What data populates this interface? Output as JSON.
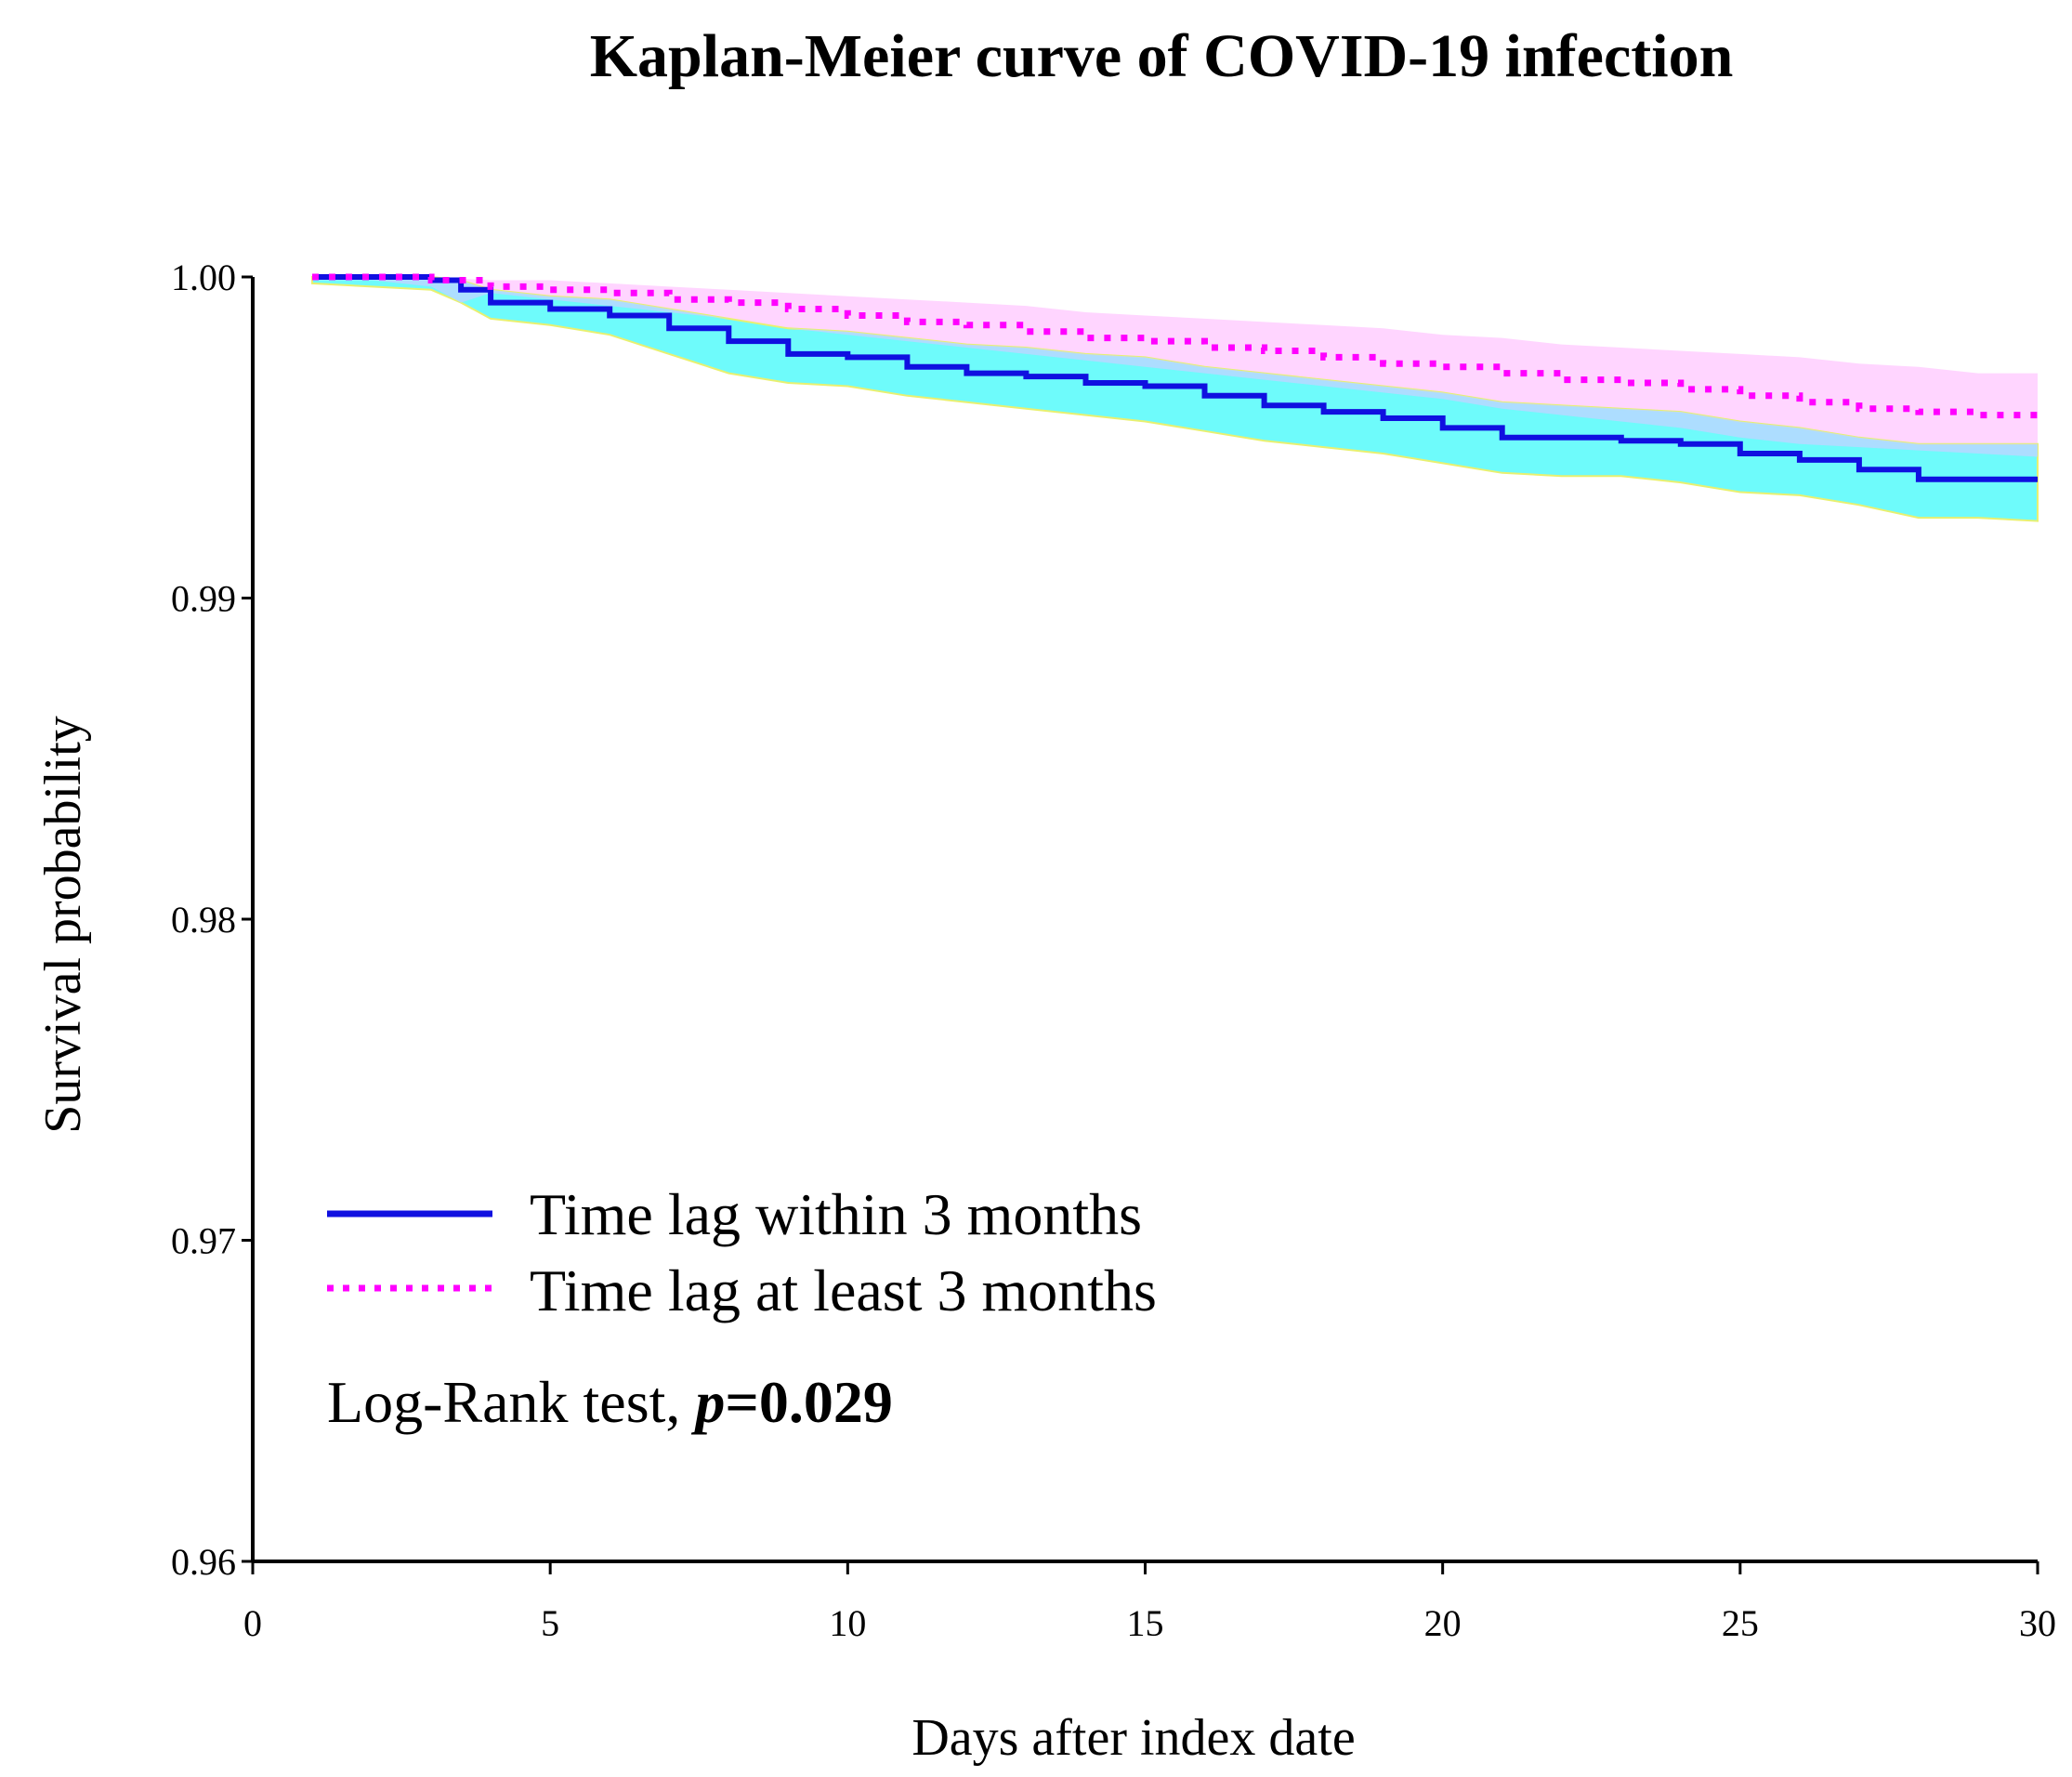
{
  "chart_data": {
    "type": "line",
    "title": "Kaplan-Meier curve of COVID-19 infection",
    "xlabel": "Days after index date",
    "ylabel": "Survival probability",
    "xlim": [
      0,
      30
    ],
    "ylim": [
      0.96,
      1.0
    ],
    "xticks": [
      0,
      5,
      10,
      15,
      20,
      25,
      30
    ],
    "xtick_labels": [
      "0",
      "5",
      "10",
      "15",
      "20",
      "25",
      "30"
    ],
    "yticks": [
      0.96,
      0.97,
      0.98,
      0.99,
      1.0
    ],
    "ytick_labels": [
      "0.96",
      "0.97",
      "0.98",
      "0.99",
      "1.00"
    ],
    "series": [
      {
        "name": "Time lag within 3 months",
        "color": "#1010e0",
        "line_style": "solid",
        "ci_color": "#55fafa",
        "x": [
          1,
          2,
          3,
          3.5,
          4,
          5,
          6,
          7,
          8,
          9,
          10,
          11,
          12,
          13,
          14,
          15,
          16,
          17,
          18,
          19,
          20,
          21,
          22,
          23,
          24,
          25,
          26,
          27,
          28,
          29,
          30
        ],
        "y": [
          1.0,
          1.0,
          0.9999,
          0.9996,
          0.9992,
          0.999,
          0.9988,
          0.9984,
          0.998,
          0.9976,
          0.9975,
          0.9972,
          0.997,
          0.9969,
          0.9967,
          0.9966,
          0.9963,
          0.996,
          0.9958,
          0.9956,
          0.9953,
          0.995,
          0.995,
          0.9949,
          0.9948,
          0.9945,
          0.9943,
          0.994,
          0.9937,
          0.9937,
          0.9937
        ],
        "ci_lower": [
          0.9998,
          0.9997,
          0.9996,
          0.9992,
          0.9987,
          0.9985,
          0.9982,
          0.9976,
          0.997,
          0.9967,
          0.9966,
          0.9963,
          0.9961,
          0.9959,
          0.9957,
          0.9955,
          0.9952,
          0.9949,
          0.9947,
          0.9945,
          0.9942,
          0.9939,
          0.9938,
          0.9938,
          0.9936,
          0.9933,
          0.9932,
          0.9929,
          0.9925,
          0.9925,
          0.9924
        ],
        "ci_upper": [
          1.0,
          1.0,
          1.0,
          0.9999,
          0.9996,
          0.9994,
          0.9993,
          0.999,
          0.9987,
          0.9984,
          0.9983,
          0.9981,
          0.9979,
          0.9978,
          0.9976,
          0.9975,
          0.9972,
          0.997,
          0.9968,
          0.9966,
          0.9964,
          0.9961,
          0.996,
          0.9959,
          0.9958,
          0.9955,
          0.9953,
          0.995,
          0.9948,
          0.9948,
          0.9948
        ]
      },
      {
        "name": "Time lag at least 3 months",
        "color": "#ff00ff",
        "line_style": "dotted",
        "ci_color": "#ffd0ff",
        "x": [
          1,
          2,
          3,
          4,
          5,
          6,
          7,
          8,
          9,
          10,
          11,
          12,
          13,
          14,
          15,
          16,
          17,
          18,
          19,
          20,
          21,
          22,
          23,
          24,
          25,
          26,
          27,
          28,
          29,
          30
        ],
        "y": [
          1.0,
          1.0,
          0.9999,
          0.9997,
          0.9996,
          0.9995,
          0.9993,
          0.9992,
          0.999,
          0.9988,
          0.9986,
          0.9985,
          0.9983,
          0.9981,
          0.998,
          0.9978,
          0.9977,
          0.9975,
          0.9973,
          0.9972,
          0.997,
          0.9968,
          0.9967,
          0.9965,
          0.9963,
          0.9961,
          0.9959,
          0.9958,
          0.9957,
          0.9957
        ],
        "ci_lower": [
          0.9999,
          0.9999,
          0.9997,
          0.9995,
          0.9993,
          0.9991,
          0.9989,
          0.9987,
          0.9984,
          0.9982,
          0.998,
          0.9978,
          0.9976,
          0.9974,
          0.9972,
          0.997,
          0.9968,
          0.9966,
          0.9964,
          0.9962,
          0.9959,
          0.9957,
          0.9955,
          0.9953,
          0.995,
          0.9948,
          0.9947,
          0.9946,
          0.9945,
          0.9944
        ],
        "ci_upper": [
          1.0,
          1.0,
          1.0,
          0.9999,
          0.9999,
          0.9998,
          0.9997,
          0.9996,
          0.9995,
          0.9994,
          0.9993,
          0.9992,
          0.9991,
          0.9989,
          0.9988,
          0.9987,
          0.9986,
          0.9985,
          0.9984,
          0.9982,
          0.9981,
          0.9979,
          0.9978,
          0.9977,
          0.9976,
          0.9975,
          0.9973,
          0.9972,
          0.997,
          0.997
        ]
      }
    ],
    "legend": {
      "position": "bottom-left",
      "items": [
        "Time lag within 3 months",
        "Time lag at least 3 months"
      ]
    },
    "annotation": {
      "prefix": "Log-Rank test, ",
      "p_symbol": "p",
      "p_value": "=0.029"
    }
  }
}
